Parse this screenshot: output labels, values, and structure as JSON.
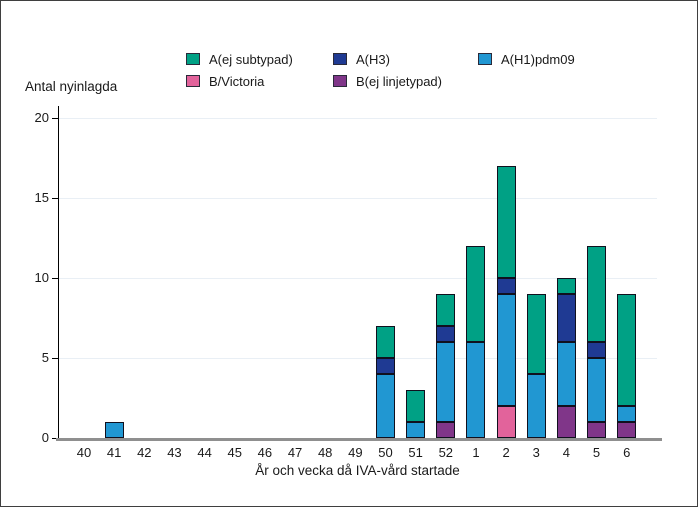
{
  "chart_data": {
    "type": "bar",
    "stacked": true,
    "ylabel": "Antal nyinlagda",
    "xlabel": "År och vecka då IVA-vård startade",
    "ylim": [
      0,
      20
    ],
    "yticks": [
      0,
      5,
      10,
      15,
      20
    ],
    "grid": true,
    "legend_position": "top-center",
    "categories": [
      "40",
      "41",
      "42",
      "43",
      "44",
      "45",
      "46",
      "47",
      "48",
      "49",
      "50",
      "51",
      "52",
      "1",
      "2",
      "3",
      "4",
      "5",
      "6"
    ],
    "series": [
      {
        "name": "B/Victoria",
        "color": "#e2639b",
        "values": [
          0,
          0,
          0,
          0,
          0,
          0,
          0,
          0,
          0,
          0,
          0,
          0,
          0,
          0,
          2,
          0,
          0,
          0,
          0
        ]
      },
      {
        "name": "B(ej linjetypad)",
        "color": "#803689",
        "values": [
          0,
          0,
          0,
          0,
          0,
          0,
          0,
          0,
          0,
          0,
          0,
          0,
          1,
          0,
          0,
          0,
          2,
          1,
          1
        ]
      },
      {
        "name": "A(H1)pdm09",
        "color": "#2197d2",
        "values": [
          0,
          1,
          0,
          0,
          0,
          0,
          0,
          0,
          0,
          0,
          4,
          1,
          5,
          6,
          7,
          4,
          4,
          4,
          1
        ]
      },
      {
        "name": "A(H3)",
        "color": "#1f3a93",
        "values": [
          0,
          0,
          0,
          0,
          0,
          0,
          0,
          0,
          0,
          0,
          1,
          0,
          1,
          0,
          1,
          0,
          3,
          1,
          0
        ]
      },
      {
        "name": "A(ej subtypad)",
        "color": "#00a185",
        "values": [
          0,
          0,
          0,
          0,
          0,
          0,
          0,
          0,
          0,
          0,
          2,
          2,
          2,
          6,
          7,
          5,
          1,
          6,
          7
        ]
      }
    ],
    "totals_by_category": [
      0,
      1,
      0,
      0,
      0,
      0,
      0,
      0,
      0,
      0,
      7,
      3,
      9,
      12,
      17,
      9,
      10,
      12,
      9
    ],
    "legend": [
      {
        "label": "A(ej subtypad)",
        "color": "#00a185"
      },
      {
        "label": "A(H3)",
        "color": "#1f3a93"
      },
      {
        "label": "A(H1)pdm09",
        "color": "#2197d2"
      },
      {
        "label": "B/Victoria",
        "color": "#e2639b"
      },
      {
        "label": "B(ej linjetypad)",
        "color": "#803689"
      }
    ],
    "colors": {
      "grid": "#e9eff5",
      "y_axis": "#000000",
      "x_axis_baseline": "#8f8f8f",
      "text": "#1a1a1a",
      "bar_border": "#10101e",
      "figure_border": "#3f3f3f"
    }
  }
}
